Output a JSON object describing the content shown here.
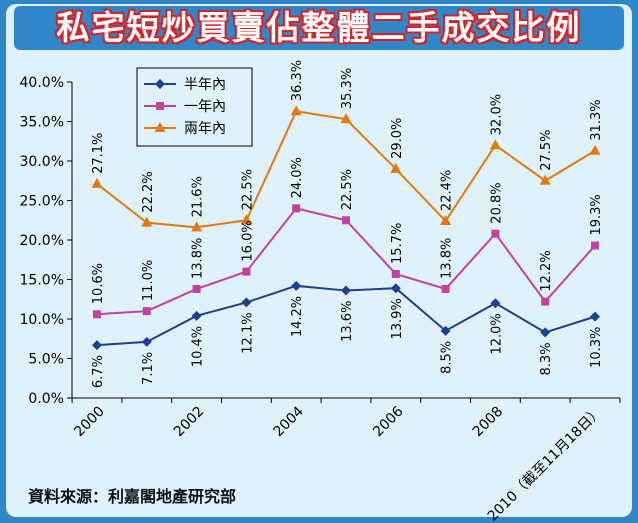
{
  "title": "私宅短炒買賣佔整體二手成交比例",
  "source": "資料來源：利嘉閣地產研究部",
  "colors": {
    "background": "#dff1fb",
    "frame": "#2f86c9",
    "title_outline": "#d4242a",
    "half_year": "#1f3f8f",
    "one_year": "#c0439f",
    "two_year": "#e07a10"
  },
  "chart_data": {
    "type": "line",
    "title": "私宅短炒買賣佔整體二手成交比例",
    "xlabel": "",
    "ylabel": "",
    "ylim": [
      0,
      40
    ],
    "grid": false,
    "legend_position": "top-left",
    "x": [
      2000,
      2001,
      2002,
      2003,
      2004,
      2005,
      2006,
      2007,
      2008,
      2009,
      2010
    ],
    "x_tick_labels": [
      "2000",
      "2002",
      "2004",
      "2006",
      "2008",
      "2010（截至11月18日）"
    ],
    "y_ticks": [
      "0.0%",
      "5.0%",
      "10.0%",
      "15.0%",
      "20.0%",
      "25.0%",
      "30.0%",
      "35.0%",
      "40.0%"
    ],
    "series": [
      {
        "name": "半年內",
        "marker": "diamond",
        "color": "#1f3f8f",
        "values": [
          6.7,
          7.1,
          10.4,
          12.1,
          14.2,
          13.6,
          13.9,
          8.5,
          12.0,
          8.3,
          10.3
        ],
        "labels": [
          "6.7%",
          "7.1%",
          "10.4%",
          "12.1%",
          "14.2%",
          "13.6%",
          "13.9%",
          "8.5%",
          "12.0%",
          "8.3%",
          "10.3%"
        ]
      },
      {
        "name": "一年內",
        "marker": "square",
        "color": "#c0439f",
        "values": [
          10.6,
          11.0,
          13.8,
          16.0,
          24.0,
          22.5,
          15.7,
          13.8,
          20.8,
          12.2,
          19.3
        ],
        "labels": [
          "10.6%",
          "11.0%",
          "13.8%",
          "16.0%",
          "24.0%",
          "22.5%",
          "15.7%",
          "13.8%",
          "20.8%",
          "12.2%",
          "19.3%"
        ]
      },
      {
        "name": "兩年內",
        "marker": "triangle",
        "color": "#e07a10",
        "values": [
          27.1,
          22.2,
          21.6,
          22.5,
          36.3,
          35.3,
          29.0,
          22.4,
          32.0,
          27.5,
          31.3
        ],
        "labels": [
          "27.1%",
          "22.2%",
          "21.6%",
          "22.5%",
          "36.3%",
          "35.3%",
          "29.0%",
          "22.4%",
          "32.0%",
          "27.5%",
          "31.3%"
        ]
      }
    ]
  }
}
